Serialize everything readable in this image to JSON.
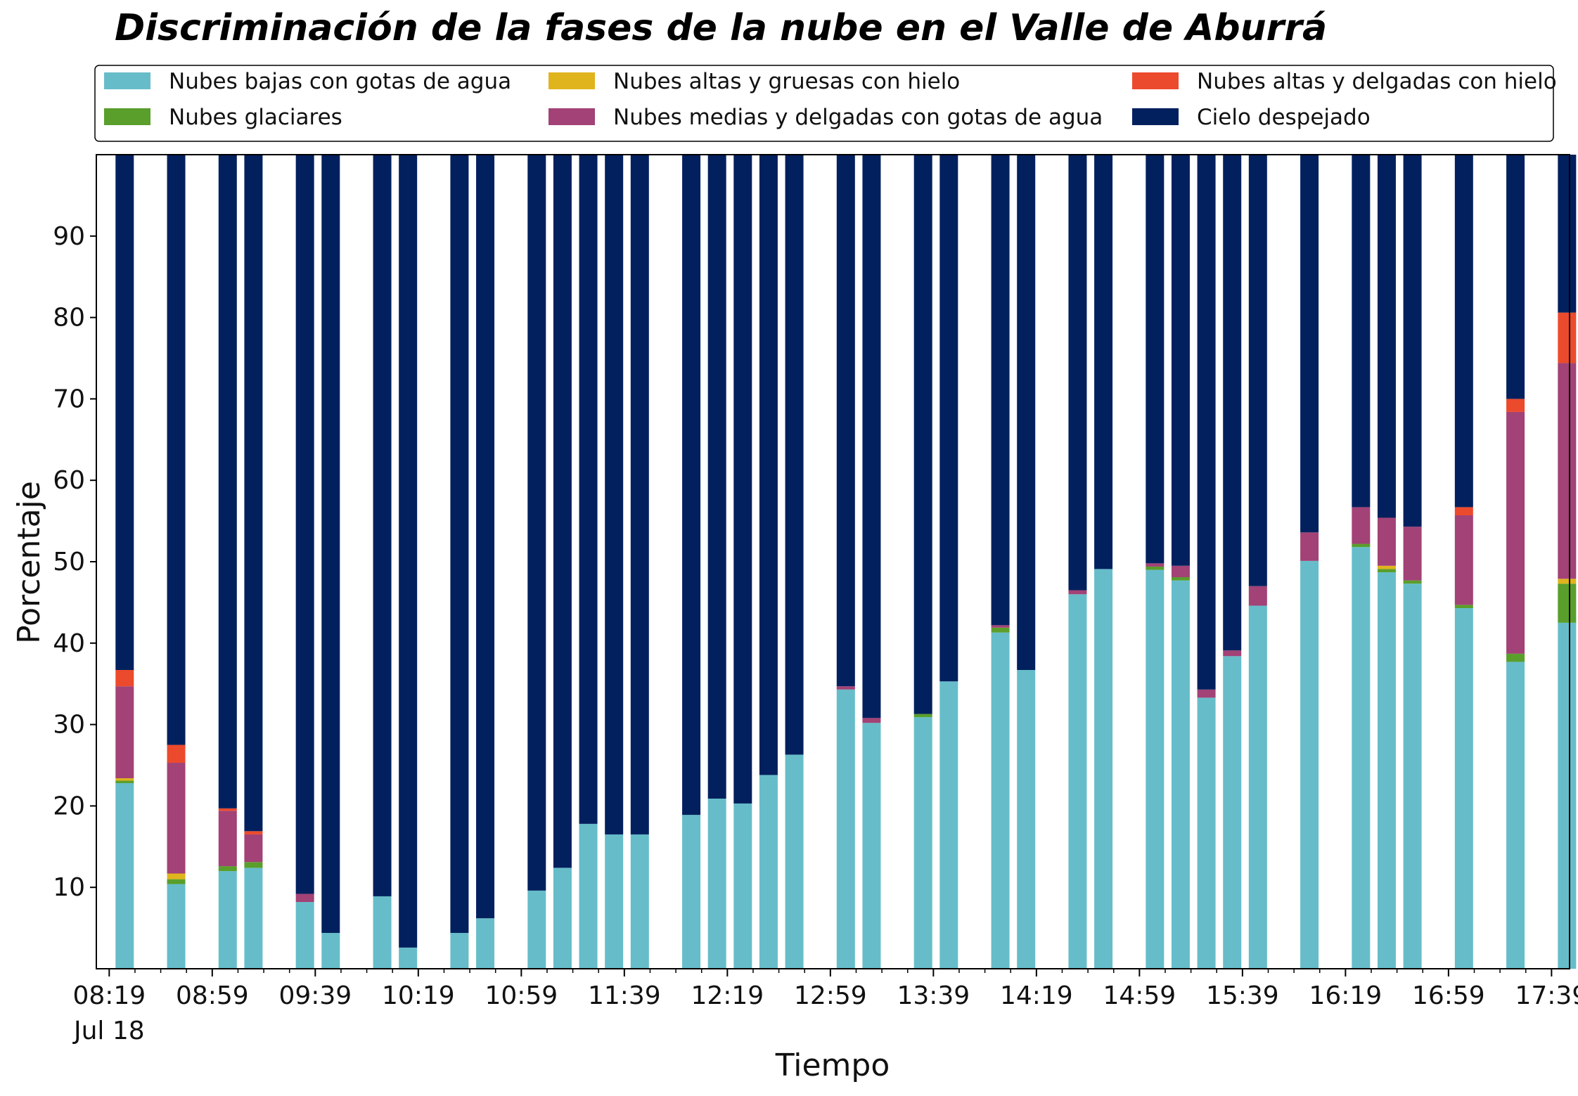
{
  "chart_data": {
    "type": "bar",
    "stacked": true,
    "title": "Discriminación de la fases de la nube en el Valle de Aburrá",
    "xlabel": "Tiempo",
    "ylabel": "Porcentaje",
    "ylim": [
      0,
      100
    ],
    "yticks": [
      10,
      20,
      30,
      40,
      50,
      60,
      70,
      80,
      90
    ],
    "xlim_minutes": [
      494,
      1066
    ],
    "xticks": [
      {
        "minute": 499,
        "label": "08:19",
        "sublabel": "Jul 18"
      },
      {
        "minute": 539,
        "label": "08:59"
      },
      {
        "minute": 579,
        "label": "09:39"
      },
      {
        "minute": 619,
        "label": "10:19"
      },
      {
        "minute": 659,
        "label": "10:59"
      },
      {
        "minute": 699,
        "label": "11:39"
      },
      {
        "minute": 739,
        "label": "12:19"
      },
      {
        "minute": 779,
        "label": "12:59"
      },
      {
        "minute": 819,
        "label": "13:39"
      },
      {
        "minute": 859,
        "label": "14:19"
      },
      {
        "minute": 899,
        "label": "14:59"
      },
      {
        "minute": 939,
        "label": "15:39"
      },
      {
        "minute": 979,
        "label": "16:19"
      },
      {
        "minute": 1019,
        "label": "16:59"
      },
      {
        "minute": 1059,
        "label": "17:39"
      }
    ],
    "legend_position": "top",
    "grid": false,
    "series": [
      {
        "name": "Nubes bajas con gotas de agua",
        "color": "#66bdc9"
      },
      {
        "name": "Nubes glaciares",
        "color": "#5a9e2c"
      },
      {
        "name": "Nubes altas y gruesas con hielo",
        "color": "#e0b41c"
      },
      {
        "name": "Nubes medias y delgadas con gotas de agua",
        "color": "#a24276"
      },
      {
        "name": "Nubes altas y delgadas con hielo",
        "color": "#ec4a2c"
      },
      {
        "name": "Cielo despejado",
        "color": "#03205e"
      }
    ],
    "legend_order": [
      0,
      1,
      2,
      3,
      4,
      5
    ],
    "bars": [
      {
        "minute": 505,
        "values": [
          22.8,
          0.3,
          0.3,
          11.3,
          2.0,
          63.3
        ]
      },
      {
        "minute": 525,
        "values": [
          10.4,
          0.6,
          0.7,
          13.6,
          2.2,
          72.5
        ]
      },
      {
        "minute": 545,
        "values": [
          12.0,
          0.6,
          0.0,
          6.8,
          0.3,
          80.3
        ]
      },
      {
        "minute": 555,
        "values": [
          12.4,
          0.7,
          0.0,
          3.4,
          0.4,
          83.1
        ]
      },
      {
        "minute": 575,
        "values": [
          8.2,
          0.0,
          0.0,
          1.0,
          0.0,
          90.8
        ]
      },
      {
        "minute": 585,
        "values": [
          4.4,
          0.0,
          0.0,
          0.0,
          0.0,
          95.6
        ]
      },
      {
        "minute": 605,
        "values": [
          8.9,
          0.0,
          0.0,
          0.0,
          0.0,
          91.1
        ]
      },
      {
        "minute": 615,
        "values": [
          2.6,
          0.0,
          0.0,
          0.0,
          0.0,
          97.4
        ]
      },
      {
        "minute": 635,
        "values": [
          4.4,
          0.0,
          0.0,
          0.0,
          0.0,
          95.6
        ]
      },
      {
        "minute": 645,
        "values": [
          6.2,
          0.0,
          0.0,
          0.0,
          0.0,
          93.8
        ]
      },
      {
        "minute": 665,
        "values": [
          9.6,
          0.0,
          0.0,
          0.0,
          0.0,
          90.4
        ]
      },
      {
        "minute": 675,
        "values": [
          12.4,
          0.0,
          0.0,
          0.0,
          0.0,
          87.6
        ]
      },
      {
        "minute": 685,
        "values": [
          17.8,
          0.0,
          0.0,
          0.0,
          0.0,
          82.2
        ]
      },
      {
        "minute": 695,
        "values": [
          16.5,
          0.0,
          0.0,
          0.0,
          0.0,
          83.5
        ]
      },
      {
        "minute": 705,
        "values": [
          16.5,
          0.0,
          0.0,
          0.0,
          0.0,
          83.5
        ]
      },
      {
        "minute": 725,
        "values": [
          18.9,
          0.0,
          0.0,
          0.0,
          0.0,
          81.1
        ]
      },
      {
        "minute": 735,
        "values": [
          20.9,
          0.0,
          0.0,
          0.0,
          0.0,
          79.1
        ]
      },
      {
        "minute": 745,
        "values": [
          20.3,
          0.0,
          0.0,
          0.0,
          0.0,
          79.7
        ]
      },
      {
        "minute": 755,
        "values": [
          23.8,
          0.0,
          0.0,
          0.0,
          0.0,
          76.2
        ]
      },
      {
        "minute": 765,
        "values": [
          26.3,
          0.0,
          0.0,
          0.0,
          0.0,
          73.7
        ]
      },
      {
        "minute": 785,
        "values": [
          34.3,
          0.0,
          0.0,
          0.4,
          0.0,
          65.3
        ]
      },
      {
        "minute": 795,
        "values": [
          30.2,
          0.0,
          0.0,
          0.6,
          0.0,
          69.2
        ]
      },
      {
        "minute": 815,
        "values": [
          30.9,
          0.4,
          0.0,
          0.0,
          0.0,
          68.7
        ]
      },
      {
        "minute": 825,
        "values": [
          35.3,
          0.0,
          0.0,
          0.0,
          0.0,
          64.7
        ]
      },
      {
        "minute": 845,
        "values": [
          41.3,
          0.6,
          0.0,
          0.3,
          0.0,
          57.8
        ]
      },
      {
        "minute": 855,
        "values": [
          36.7,
          0.0,
          0.0,
          0.0,
          0.0,
          63.3
        ]
      },
      {
        "minute": 875,
        "values": [
          46.0,
          0.0,
          0.0,
          0.5,
          0.0,
          53.5
        ]
      },
      {
        "minute": 885,
        "values": [
          49.1,
          0.0,
          0.0,
          0.0,
          0.0,
          50.9
        ]
      },
      {
        "minute": 905,
        "values": [
          49.0,
          0.4,
          0.0,
          0.4,
          0.0,
          50.2
        ]
      },
      {
        "minute": 915,
        "values": [
          47.7,
          0.4,
          0.0,
          1.4,
          0.0,
          50.5
        ]
      },
      {
        "minute": 925,
        "values": [
          33.3,
          0.0,
          0.0,
          1.0,
          0.0,
          65.7
        ]
      },
      {
        "minute": 935,
        "values": [
          38.4,
          0.0,
          0.0,
          0.7,
          0.0,
          60.9
        ]
      },
      {
        "minute": 945,
        "values": [
          44.6,
          0.0,
          0.0,
          2.4,
          0.0,
          53.0
        ]
      },
      {
        "minute": 965,
        "values": [
          50.1,
          0.0,
          0.0,
          3.5,
          0.0,
          46.4
        ]
      },
      {
        "minute": 985,
        "values": [
          51.8,
          0.4,
          0.0,
          4.5,
          0.0,
          43.3
        ]
      },
      {
        "minute": 995,
        "values": [
          48.7,
          0.4,
          0.4,
          5.9,
          0.0,
          44.6
        ]
      },
      {
        "minute": 1005,
        "values": [
          47.3,
          0.4,
          0.0,
          6.6,
          0.0,
          45.7
        ]
      },
      {
        "minute": 1025,
        "values": [
          44.3,
          0.4,
          0.0,
          11.0,
          1.0,
          43.3
        ]
      },
      {
        "minute": 1045,
        "values": [
          37.7,
          1.0,
          0.0,
          29.7,
          1.6,
          30.0
        ]
      },
      {
        "minute": 1065,
        "values": [
          42.5,
          4.8,
          0.6,
          26.5,
          6.2,
          19.4
        ]
      }
    ]
  }
}
